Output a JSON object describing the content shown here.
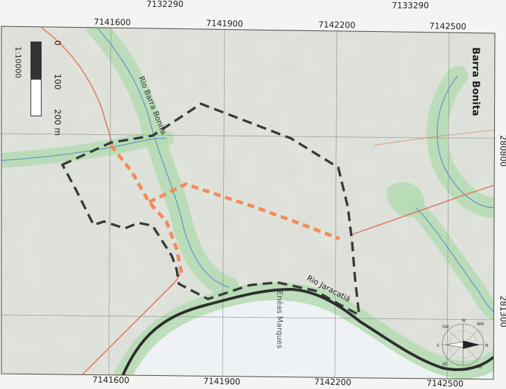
{
  "map": {
    "title": "Barra Bonita",
    "scale_ratio": "1:10000",
    "scale_ticks": [
      "0",
      "100",
      "200 m"
    ],
    "grid_labels_outer_top": [
      "7132290",
      "7133290"
    ],
    "grid_labels_top": [
      "7141600",
      "7141900",
      "7142200",
      "7142500"
    ],
    "grid_labels_bottom": [
      "7141600",
      "7141900",
      "7142200",
      "7142500"
    ],
    "grid_labels_right": [
      "280800",
      "281300"
    ],
    "features": {
      "river_1": "Rio Barra Bonita",
      "river_2": "Rio Jaracatiá",
      "road_1": "Enéas Marques"
    },
    "compass_labels": [
      "N",
      "NW",
      "W",
      "SW",
      "S",
      "NE",
      "SE"
    ],
    "colors": {
      "boundary": "#3a3a3a",
      "proposed_route": "#f28c5a",
      "road": "#e07b62",
      "river": "#5b93c9",
      "riparian_buffer": "#b7dcb4",
      "grid": "#8a8a8a",
      "land_base": "#d7dcd2",
      "water": "#eef3f6"
    }
  }
}
